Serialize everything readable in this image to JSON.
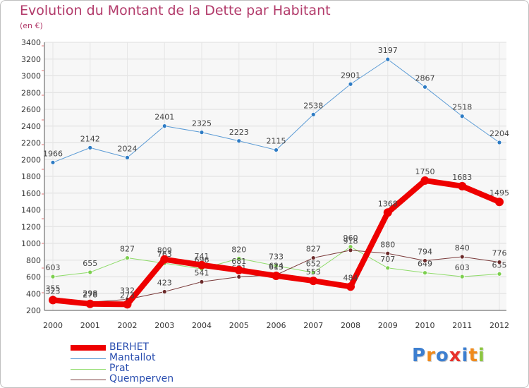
{
  "title": "Evolution du Montant de la Dette par Habitant",
  "subtitle": "(en €)",
  "logo": {
    "text": "Proxiti",
    "colors": [
      "#3d7fd0",
      "#f08a1c",
      "#3d7fd0",
      "#e8302a",
      "#3d7fd0",
      "#f08a1c",
      "#8cc63f"
    ]
  },
  "chart_data": {
    "type": "line",
    "x": [
      "2000",
      "2001",
      "2002",
      "2003",
      "2004",
      "2005",
      "2006",
      "2007",
      "2008",
      "2009",
      "2010",
      "2011",
      "2012"
    ],
    "ylim": [
      200,
      3400
    ],
    "yticks": [
      200,
      400,
      600,
      800,
      1000,
      1200,
      1400,
      1600,
      1800,
      2000,
      2200,
      2400,
      2600,
      2800,
      3000,
      3200,
      3400
    ],
    "grid": true,
    "legend_position": "bottom-left",
    "series": [
      {
        "name": "Mantallot",
        "color": "#5b9bd5",
        "width": 1,
        "marker": "#2d7bc4",
        "values": [
          1966,
          2142,
          2024,
          2401,
          2325,
          2223,
          2115,
          2538,
          2901,
          3197,
          2867,
          2518,
          2204
        ]
      },
      {
        "name": "Prat",
        "color": "#8fdc6a",
        "width": 1,
        "marker": "#7ccf4e",
        "values": [
          603,
          655,
          827,
          763,
          696,
          820,
          733,
          652,
          960,
          707,
          649,
          603,
          635
        ]
      },
      {
        "name": "Quemperven",
        "color": "#7a3a3a",
        "width": 1,
        "marker": "#6b2a2a",
        "values": [
          355,
          298,
          332,
          423,
          541,
          601,
          624,
          827,
          918,
          880,
          794,
          840,
          776
        ]
      },
      {
        "name": "BERHET",
        "color": "#ee0000",
        "width": 8,
        "marker": "#ee0000",
        "values": [
          323,
          278,
          273,
          809,
          741,
          681,
          613,
          553,
          484,
          1368,
          1750,
          1683,
          1495
        ]
      }
    ],
    "legend": [
      {
        "name": "BERHET",
        "color": "#ee0000",
        "width": 8
      },
      {
        "name": "Mantallot",
        "color": "#5b9bd5",
        "width": 1
      },
      {
        "name": "Prat",
        "color": "#8fdc6a",
        "width": 1
      },
      {
        "name": "Quemperven",
        "color": "#7a3a3a",
        "width": 1
      }
    ]
  }
}
